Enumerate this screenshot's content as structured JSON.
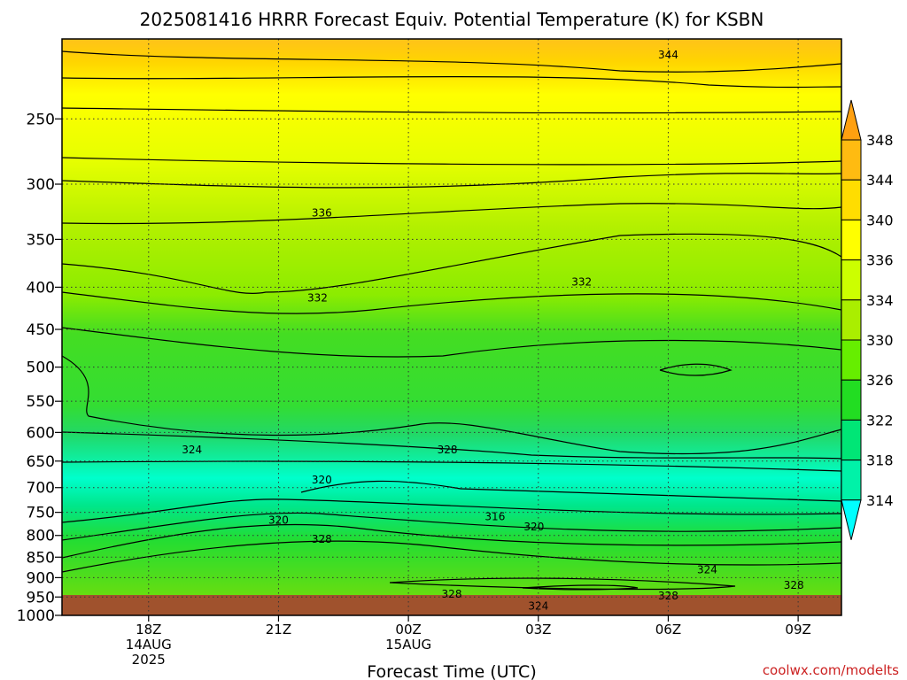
{
  "chart_data": {
    "type": "heatmap",
    "title": "2025081416 HRRR Forecast Equiv. Potential Temperature (K) for KSBN",
    "xlabel": "Forecast Time (UTC)",
    "ylabel": "",
    "x_ticks": [
      {
        "label": "18Z",
        "sub": [
          "14AUG",
          "2025"
        ],
        "hour": 2
      },
      {
        "label": "21Z",
        "sub": [],
        "hour": 5
      },
      {
        "label": "00Z",
        "sub": [
          "15AUG"
        ],
        "hour": 8
      },
      {
        "label": "03Z",
        "sub": [],
        "hour": 11
      },
      {
        "label": "06Z",
        "sub": [],
        "hour": 14
      },
      {
        "label": "09Z",
        "sub": [],
        "hour": 17
      }
    ],
    "xlim_hours": [
      0,
      18
    ],
    "y_ticks": [
      250,
      300,
      350,
      400,
      450,
      500,
      550,
      600,
      650,
      700,
      750,
      800,
      850,
      900,
      950,
      1000
    ],
    "ylim_hpa": [
      1000,
      200
    ],
    "y_scale": "log",
    "grid": true,
    "ground_color": "#a0522d",
    "colorbar": {
      "labels": [
        "314",
        "318",
        "322",
        "326",
        "330",
        "334",
        "336",
        "340",
        "344",
        "348"
      ],
      "colors": [
        "#00ffcc",
        "#00f2a8",
        "#00e676",
        "#22dd22",
        "#66ee00",
        "#aaee00",
        "#ccff00",
        "#ffff00",
        "#ffdd00",
        "#ffbb11"
      ],
      "top_arrow_color": "#ffa010",
      "bottom_arrow_color": "#00ffff"
    },
    "contour_labels": [
      {
        "text": "344",
        "hour": 14.0,
        "p": 209
      },
      {
        "text": "336",
        "hour": 6.0,
        "p": 325
      },
      {
        "text": "332",
        "hour": 12.0,
        "p": 394
      },
      {
        "text": "332",
        "hour": 5.9,
        "p": 412
      },
      {
        "text": "324",
        "hour": 3.0,
        "p": 630
      },
      {
        "text": "328",
        "hour": 8.9,
        "p": 630
      },
      {
        "text": "320",
        "hour": 6.0,
        "p": 685
      },
      {
        "text": "316",
        "hour": 10.0,
        "p": 759
      },
      {
        "text": "320",
        "hour": 5.0,
        "p": 767
      },
      {
        "text": "320",
        "hour": 10.9,
        "p": 781
      },
      {
        "text": "328",
        "hour": 6.0,
        "p": 808
      },
      {
        "text": "324",
        "hour": 14.9,
        "p": 880
      },
      {
        "text": "328",
        "hour": 16.9,
        "p": 919
      },
      {
        "text": "328",
        "hour": 9.0,
        "p": 942
      },
      {
        "text": "328",
        "hour": 14.0,
        "p": 947
      },
      {
        "text": "324",
        "hour": 11.0,
        "p": 974
      }
    ],
    "watermark": "coolwx.com/modelts"
  }
}
